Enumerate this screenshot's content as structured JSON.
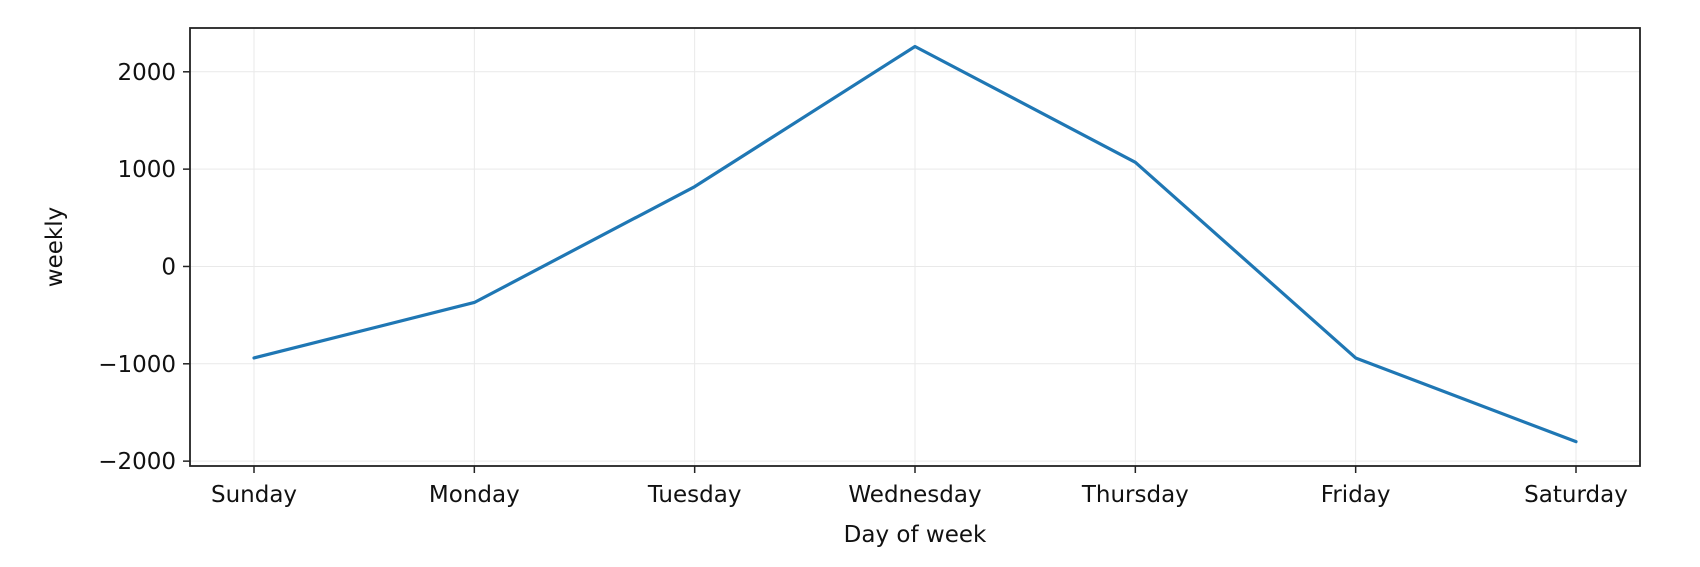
{
  "chart_data": {
    "type": "line",
    "title": "",
    "xlabel": "Day of week",
    "ylabel": "weekly",
    "categories": [
      "Sunday",
      "Monday",
      "Tuesday",
      "Wednesday",
      "Thursday",
      "Friday",
      "Saturday"
    ],
    "series": [
      {
        "values": [
          -940,
          -370,
          820,
          2260,
          1070,
          -940,
          -1800
        ],
        "color": "#1f77b4"
      }
    ],
    "ylim": [
      -2050,
      2450
    ],
    "yticks": [
      -2000,
      -1000,
      0,
      1000,
      2000
    ],
    "ytick_labels": [
      "−2000",
      "−1000",
      "0",
      "1000",
      "2000"
    ],
    "grid": true,
    "legend": "none"
  }
}
